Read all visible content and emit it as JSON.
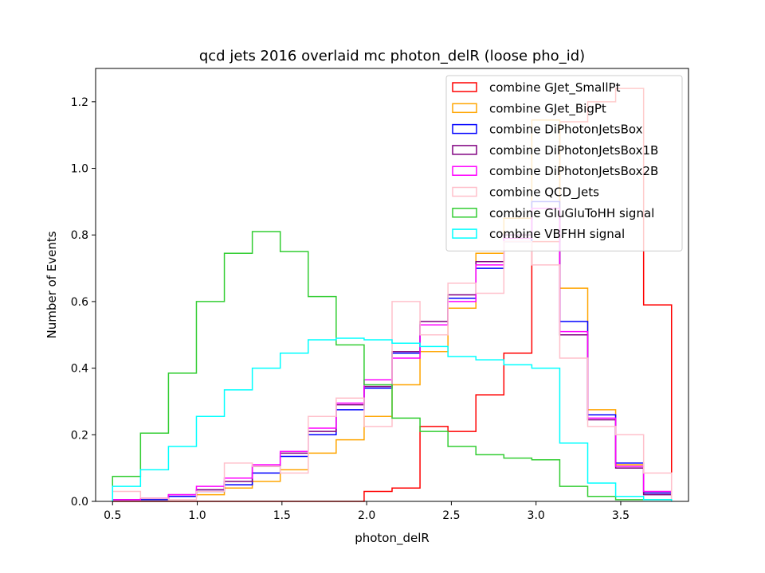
{
  "chart_data": {
    "type": "step-histogram",
    "title": "qcd jets 2016 overlaid mc photon_delR (loose pho_id)",
    "xlabel": "photon_delR",
    "ylabel": "Number of Events",
    "xlim": [
      0.4,
      3.9
    ],
    "ylim": [
      0,
      1.3
    ],
    "xticks": [
      0.5,
      1.0,
      1.5,
      2.0,
      2.5,
      3.0,
      3.5
    ],
    "xtick_labels": [
      "0.5",
      "1.0",
      "1.5",
      "2.0",
      "2.5",
      "3.0",
      "3.5"
    ],
    "yticks": [
      0.0,
      0.2,
      0.4,
      0.6,
      0.8,
      1.0,
      1.2
    ],
    "ytick_labels": [
      "0.0",
      "0.2",
      "0.4",
      "0.6",
      "0.8",
      "1.0",
      "1.2"
    ],
    "legend_position": "top-right",
    "bin_edges": [
      0.5,
      0.665,
      0.83,
      0.995,
      1.16,
      1.325,
      1.49,
      1.655,
      1.82,
      1.985,
      2.15,
      2.315,
      2.48,
      2.645,
      2.81,
      2.975,
      3.14,
      3.305,
      3.47,
      3.635,
      3.8
    ],
    "series": [
      {
        "name": "combine GJet_SmallPt",
        "color": "#ff0000",
        "values": [
          0,
          0,
          0,
          0,
          0,
          0,
          0,
          0,
          0,
          0.03,
          0.04,
          0.225,
          0.21,
          0.32,
          0.445,
          0.78,
          1.14,
          1.2,
          1.24,
          0.59
        ]
      },
      {
        "name": "combine GJet_BigPt",
        "color": "#ffa500",
        "values": [
          0.005,
          0.005,
          0.015,
          0.02,
          0.04,
          0.06,
          0.095,
          0.145,
          0.185,
          0.255,
          0.35,
          0.45,
          0.58,
          0.745,
          0.85,
          1.145,
          0.64,
          0.275,
          0.11,
          0.025
        ]
      },
      {
        "name": "combine DiPhotonJetsBox",
        "color": "#0000ff",
        "values": [
          0.005,
          0.005,
          0.015,
          0.03,
          0.05,
          0.085,
          0.135,
          0.2,
          0.275,
          0.34,
          0.445,
          0.53,
          0.61,
          0.7,
          0.78,
          0.9,
          0.54,
          0.26,
          0.115,
          0.025
        ]
      },
      {
        "name": "combine DiPhotonJetsBox1B",
        "color": "#800080",
        "values": [
          0.005,
          0.01,
          0.02,
          0.035,
          0.06,
          0.105,
          0.145,
          0.21,
          0.29,
          0.345,
          0.45,
          0.54,
          0.62,
          0.72,
          0.8,
          0.88,
          0.5,
          0.245,
          0.1,
          0.02
        ]
      },
      {
        "name": "combine DiPhotonJetsBox2B",
        "color": "#ff00ff",
        "values": [
          0.005,
          0.01,
          0.02,
          0.045,
          0.07,
          0.11,
          0.15,
          0.22,
          0.295,
          0.365,
          0.43,
          0.53,
          0.6,
          0.71,
          0.79,
          0.88,
          0.51,
          0.25,
          0.105,
          0.03
        ]
      },
      {
        "name": "combine QCD_Jets",
        "color": "#ffc0cb",
        "values": [
          0.03,
          0.01,
          0.005,
          0.03,
          0.115,
          0.105,
          0.085,
          0.255,
          0.31,
          0.225,
          0.6,
          0.5,
          0.655,
          0.625,
          0.78,
          0.71,
          0.43,
          0.225,
          0.2,
          0.085
        ]
      },
      {
        "name": "combine GluGluToHH signal",
        "color": "#32cd32",
        "values": [
          0.075,
          0.205,
          0.385,
          0.6,
          0.745,
          0.81,
          0.75,
          0.615,
          0.47,
          0.35,
          0.25,
          0.21,
          0.165,
          0.14,
          0.13,
          0.125,
          0.045,
          0.015,
          0.005,
          0.005
        ]
      },
      {
        "name": "combine VBFHH signal",
        "color": "#00ffff",
        "values": [
          0.045,
          0.095,
          0.165,
          0.255,
          0.335,
          0.4,
          0.445,
          0.485,
          0.49,
          0.485,
          0.475,
          0.465,
          0.435,
          0.425,
          0.41,
          0.4,
          0.175,
          0.055,
          0.015,
          0.005
        ]
      }
    ]
  }
}
